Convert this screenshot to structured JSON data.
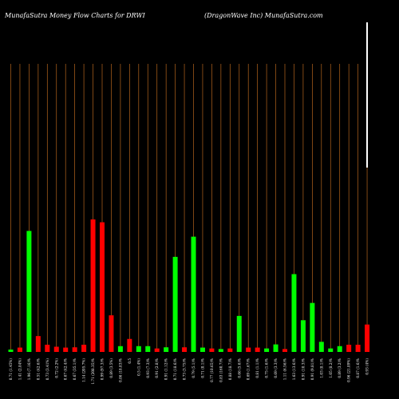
{
  "chart_data": {
    "type": "bar",
    "title_left": "MunafaSutra  Money Flow  Charts for DRWI",
    "title_right": "(DragonWave   Inc) MunafaSutra.com",
    "colors": {
      "up": "#00ff00",
      "down": "#ff0000",
      "grid": "#b5651d",
      "background": "#000000",
      "price_line": "#ffffff"
    },
    "ylim": [
      0,
      100
    ],
    "categories": [
      "0.71 (1.45%)",
      "1.41 (2.84%)",
      "1.96 (7.16)%",
      "0.51 (42.6)%",
      "0.73 (3.41%)",
      "0.72 (2.2%)",
      "0.67 (42.4)%",
      "0.67 (35.1)%",
      "1.14 (205.7%)",
      "1.71 (208.35)%",
      "0.99 (97.3)%",
      "0.89 (3.5%)",
      "0.86 (18.83)%",
      "0.5",
      "0.5 (1.4%)",
      "0.93 (7.3)%",
      "0.91 (2.8)%",
      "0.91 (1.12)%",
      "0.71 (18.6)%",
      "0.73 (3.75)%",
      "0.79 (5.1)%",
      "0.71 (0.1)%",
      "0.77 (10.65)%",
      "0.83 (160.7)%",
      "0.88 (18.7)%",
      "0.66 (5.6)%",
      "0.69 (1.67)%",
      "0.81 (1.1)%",
      "0.75 (1.6)%",
      "0.69 (3.3)%",
      "1.11 (6.56)%",
      "1.63 (13.6)%",
      "0.91 (10.3)%",
      "0.91 (9.81)%",
      "1.03 (8.1)%",
      "1.05 (8.2)%",
      "0.89 (3.2)%",
      "0.96 (21.89%)",
      "0.87 (1.6)%",
      "0.93 (4%)"
    ],
    "values": [
      0.8,
      1.5,
      42,
      5.5,
      2.5,
      1.8,
      1.5,
      1.6,
      2.5,
      46,
      45,
      12.7,
      2.0,
      4.5,
      2.0,
      2.0,
      1.2,
      1.6,
      33,
      1.6,
      40,
      1.5,
      1.2,
      1.0,
      1.2,
      12.5,
      1.5,
      1.5,
      1.2,
      2.6,
      1.0,
      27,
      11,
      17,
      3.5,
      1.2,
      2.0,
      2.5,
      2.5,
      9.5
    ],
    "directions": [
      "up",
      "down",
      "up",
      "down",
      "down",
      "down",
      "down",
      "down",
      "down",
      "down",
      "down",
      "down",
      "up",
      "down",
      "up",
      "up",
      "down",
      "up",
      "up",
      "down",
      "up",
      "up",
      "down",
      "up",
      "down",
      "up",
      "down",
      "down",
      "up",
      "up",
      "down",
      "up",
      "up",
      "up",
      "up",
      "up",
      "up",
      "down",
      "down",
      "down"
    ],
    "price_line_last": 64
  }
}
